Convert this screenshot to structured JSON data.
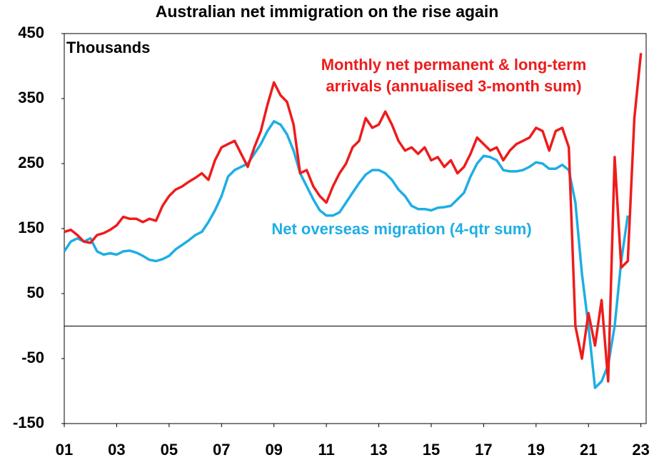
{
  "chart_data": {
    "type": "line",
    "title": "Australian net immigration on the rise again",
    "y_label": "Thousands",
    "x": [
      2001,
      2001.25,
      2001.5,
      2001.75,
      2002,
      2002.25,
      2002.5,
      2002.75,
      2003,
      2003.25,
      2003.5,
      2003.75,
      2004,
      2004.25,
      2004.5,
      2004.75,
      2005,
      2005.25,
      2005.5,
      2005.75,
      2006,
      2006.25,
      2006.5,
      2006.75,
      2007,
      2007.25,
      2007.5,
      2007.75,
      2008,
      2008.25,
      2008.5,
      2008.75,
      2009,
      2009.25,
      2009.5,
      2009.75,
      2010,
      2010.25,
      2010.5,
      2010.75,
      2011,
      2011.25,
      2011.5,
      2011.75,
      2012,
      2012.25,
      2012.5,
      2012.75,
      2013,
      2013.25,
      2013.5,
      2013.75,
      2014,
      2014.25,
      2014.5,
      2014.75,
      2015,
      2015.25,
      2015.5,
      2015.75,
      2016,
      2016.25,
      2016.5,
      2016.75,
      2017,
      2017.25,
      2017.5,
      2017.75,
      2018,
      2018.25,
      2018.5,
      2018.75,
      2019,
      2019.25,
      2019.5,
      2019.75,
      2020,
      2020.25,
      2020.5,
      2020.75,
      2021,
      2021.25,
      2021.5,
      2021.75,
      2022,
      2022.25,
      2022.5,
      2022.75,
      2023
    ],
    "series": [
      {
        "name": "Monthly net permanent & long-term arrivals (annualised 3-month sum)",
        "color": "#ee1c1c",
        "values": [
          145,
          148,
          140,
          130,
          128,
          140,
          143,
          148,
          155,
          168,
          165,
          165,
          160,
          165,
          162,
          185,
          200,
          210,
          215,
          222,
          228,
          235,
          225,
          255,
          275,
          280,
          285,
          265,
          245,
          275,
          300,
          340,
          375,
          355,
          345,
          310,
          235,
          240,
          215,
          200,
          190,
          215,
          235,
          250,
          275,
          285,
          320,
          305,
          310,
          330,
          310,
          285,
          270,
          275,
          265,
          275,
          255,
          260,
          245,
          255,
          235,
          245,
          265,
          290,
          280,
          270,
          275,
          255,
          270,
          280,
          285,
          290,
          305,
          300,
          270,
          300,
          305,
          275,
          0,
          -50,
          20,
          -30,
          40,
          -85,
          260,
          90,
          100,
          320,
          420
        ]
      },
      {
        "name": "Net overseas migration (4-qtr sum)",
        "color": "#1eaee4",
        "values": [
          115,
          130,
          135,
          130,
          135,
          115,
          110,
          112,
          110,
          115,
          116,
          113,
          108,
          102,
          100,
          103,
          108,
          118,
          125,
          132,
          140,
          145,
          160,
          178,
          200,
          230,
          240,
          245,
          250,
          265,
          280,
          300,
          315,
          310,
          295,
          270,
          235,
          215,
          195,
          178,
          170,
          170,
          175,
          190,
          205,
          220,
          233,
          240,
          240,
          235,
          225,
          210,
          200,
          185,
          180,
          180,
          178,
          182,
          183,
          185,
          195,
          205,
          230,
          250,
          262,
          260,
          255,
          240,
          238,
          238,
          240,
          245,
          252,
          250,
          242,
          242,
          248,
          240,
          190,
          80,
          0,
          -95,
          -85,
          -60,
          0,
          100,
          170,
          null,
          null
        ]
      }
    ],
    "xlim": [
      2001,
      2023.2
    ],
    "xticks": [
      {
        "value": 2001,
        "label": "01"
      },
      {
        "value": 2003,
        "label": "03"
      },
      {
        "value": 2005,
        "label": "05"
      },
      {
        "value": 2007,
        "label": "07"
      },
      {
        "value": 2009,
        "label": "09"
      },
      {
        "value": 2011,
        "label": "11"
      },
      {
        "value": 2013,
        "label": "13"
      },
      {
        "value": 2015,
        "label": "15"
      },
      {
        "value": 2017,
        "label": "17"
      },
      {
        "value": 2019,
        "label": "19"
      },
      {
        "value": 2021,
        "label": "21"
      },
      {
        "value": 2023,
        "label": "23"
      }
    ],
    "ylim": [
      -150,
      450
    ],
    "yticks": [
      -150,
      -50,
      50,
      150,
      250,
      350,
      450
    ]
  }
}
